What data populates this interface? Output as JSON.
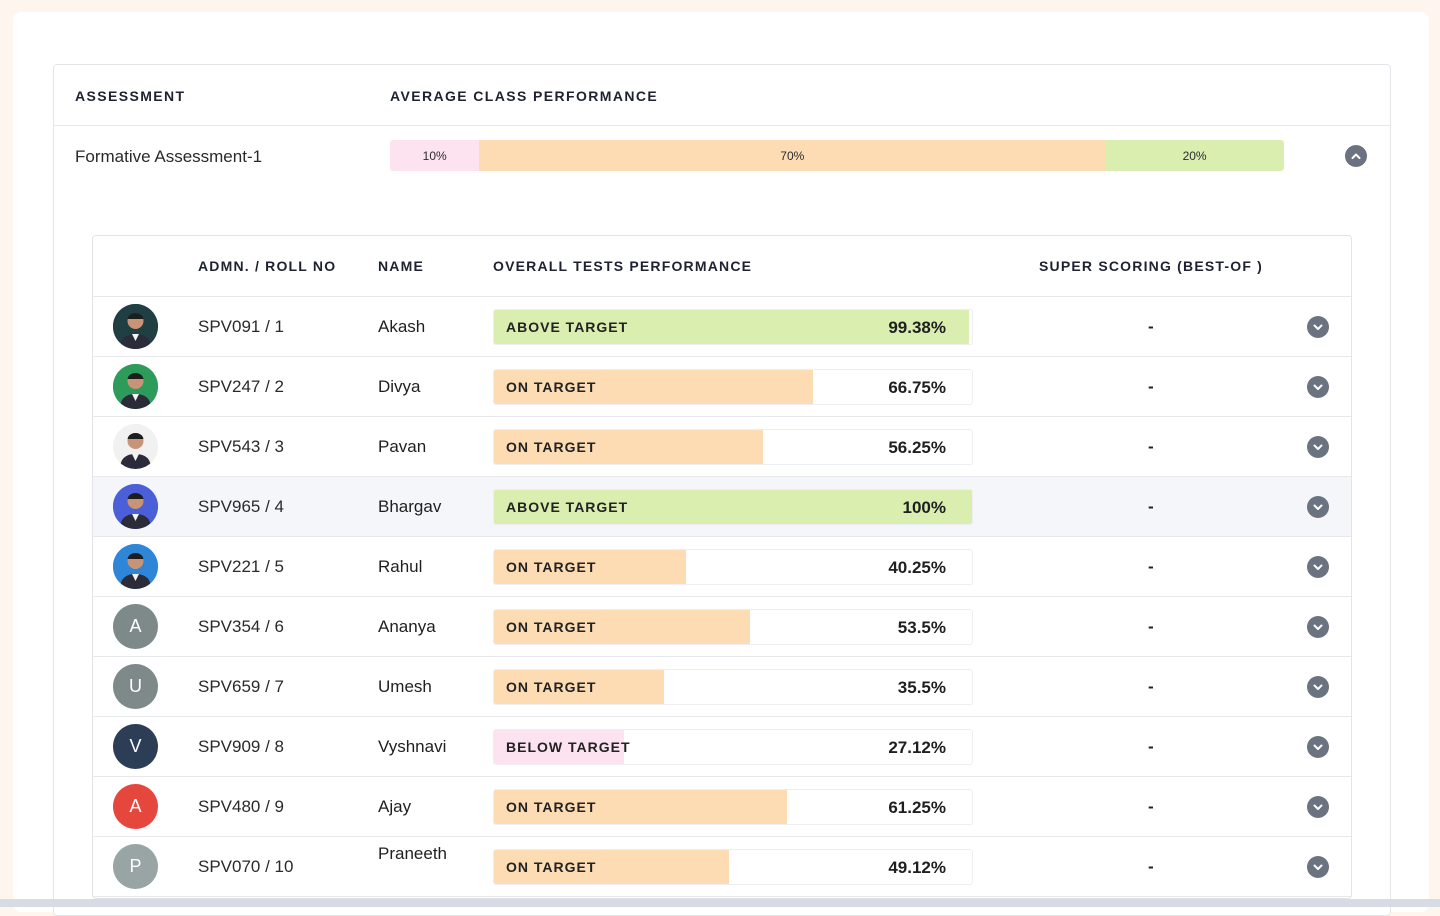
{
  "colors": {
    "below": "#fde3ef",
    "on": "#fddcb3",
    "above": "#d9eeaf"
  },
  "header": {
    "assessment_label": "ASSESSMENT",
    "avg_label": "AVERAGE CLASS PERFORMANCE"
  },
  "assessment": {
    "name": "Formative Assessment-1",
    "segments": [
      {
        "label": "10%",
        "value": 10,
        "color": "#fde3ef"
      },
      {
        "label": "70%",
        "value": 70,
        "color": "#fddcb3"
      },
      {
        "label": "20%",
        "value": 20,
        "color": "#d9eeaf"
      }
    ]
  },
  "table": {
    "headers": {
      "roll": "ADMN. / ROLL NO",
      "name": "NAME",
      "performance": "OVERALL TESTS PERFORMANCE",
      "super": "SUPER SCORING (BEST-OF )"
    },
    "rows": [
      {
        "roll": "SPV091 / 1",
        "name": "Akash",
        "status": "ABOVE TARGET",
        "value": "99.38%",
        "pct": 99.38,
        "color": "#d9eeaf",
        "super": "-",
        "avatar_type": "photo",
        "avatar_bg": "#1f3f42",
        "avatar_letter": ""
      },
      {
        "roll": "SPV247 / 2",
        "name": "Divya",
        "status": "ON TARGET",
        "value": "66.75%",
        "pct": 66.75,
        "color": "#fddcb3",
        "super": "-",
        "avatar_type": "photo",
        "avatar_bg": "#2d9b5a",
        "avatar_letter": ""
      },
      {
        "roll": "SPV543 / 3",
        "name": "Pavan",
        "status": "ON TARGET",
        "value": "56.25%",
        "pct": 56.25,
        "color": "#fddcb3",
        "super": "-",
        "avatar_type": "photo",
        "avatar_bg": "#f1f1f1",
        "avatar_letter": ""
      },
      {
        "roll": "SPV965 / 4",
        "name": "Bhargav",
        "status": "ABOVE TARGET",
        "value": "100%",
        "pct": 100,
        "color": "#d9eeaf",
        "super": "-",
        "avatar_type": "photo",
        "avatar_bg": "#4a5fd8",
        "avatar_letter": ""
      },
      {
        "roll": "SPV221 / 5",
        "name": "Rahul",
        "status": "ON TARGET",
        "value": "40.25%",
        "pct": 40.25,
        "color": "#fddcb3",
        "super": "-",
        "avatar_type": "photo",
        "avatar_bg": "#2f86d9",
        "avatar_letter": ""
      },
      {
        "roll": "SPV354 / 6",
        "name": "Ananya",
        "status": "ON TARGET",
        "value": "53.5%",
        "pct": 53.5,
        "color": "#fddcb3",
        "super": "-",
        "avatar_type": "letter",
        "avatar_bg": "#7d8a89",
        "avatar_letter": "A"
      },
      {
        "roll": "SPV659 / 7",
        "name": "Umesh",
        "status": "ON TARGET",
        "value": "35.5%",
        "pct": 35.5,
        "color": "#fddcb3",
        "super": "-",
        "avatar_type": "letter",
        "avatar_bg": "#7d8a89",
        "avatar_letter": "U"
      },
      {
        "roll": "SPV909 / 8",
        "name": "Vyshnavi",
        "status": "BELOW TARGET",
        "value": "27.12%",
        "pct": 27.12,
        "color": "#fde3ef",
        "super": "-",
        "avatar_type": "letter",
        "avatar_bg": "#2c3e55",
        "avatar_letter": "V"
      },
      {
        "roll": "SPV480 / 9",
        "name": "Ajay",
        "status": "ON TARGET",
        "value": "61.25%",
        "pct": 61.25,
        "color": "#fddcb3",
        "super": "-",
        "avatar_type": "letter",
        "avatar_bg": "#e5473d",
        "avatar_letter": "A"
      },
      {
        "roll": "SPV070 / 10",
        "name": "Praneeth",
        "status": "ON TARGET",
        "value": "49.12%",
        "pct": 49.12,
        "color": "#fddcb3",
        "super": "-",
        "avatar_type": "letter",
        "avatar_bg": "#98a5a4",
        "avatar_letter": "P"
      }
    ]
  }
}
